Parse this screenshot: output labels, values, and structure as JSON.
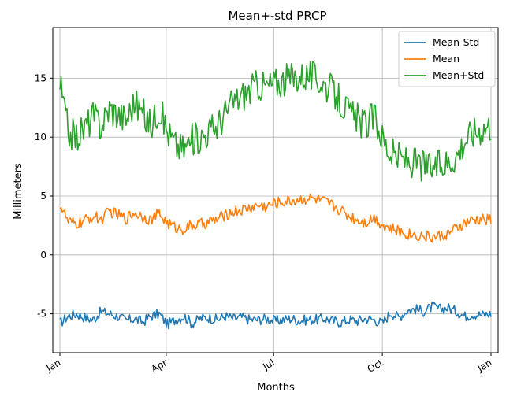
{
  "chart_data": {
    "type": "line",
    "title": "Mean+-std   PRCP",
    "xlabel": "Months",
    "ylabel": "Millimeters",
    "ylim": [
      -8.3,
      19.3
    ],
    "xlim": [
      -6,
      371
    ],
    "grid": true,
    "legend_position": "top-right",
    "x_ticks": [
      {
        "label": "Jan",
        "day": 0
      },
      {
        "label": "Apr",
        "day": 90
      },
      {
        "label": "Jul",
        "day": 181
      },
      {
        "label": "Oct",
        "day": 273
      },
      {
        "label": "Jan",
        "day": 365
      }
    ],
    "y_ticks": [
      -5,
      0,
      5,
      10,
      15
    ],
    "series": [
      {
        "name": "Mean-Std",
        "color": "#1f77b4",
        "x": [
          0,
          7,
          14,
          21,
          28,
          35,
          42,
          49,
          56,
          63,
          70,
          77,
          84,
          91,
          98,
          105,
          112,
          119,
          126,
          133,
          140,
          147,
          154,
          161,
          168,
          175,
          182,
          189,
          196,
          203,
          210,
          217,
          224,
          231,
          238,
          245,
          252,
          259,
          266,
          273,
          280,
          287,
          294,
          301,
          308,
          315,
          322,
          329,
          336,
          343,
          350,
          357,
          364
        ],
        "values": [
          -5.8,
          -5.2,
          -5.0,
          -5.3,
          -5.5,
          -4.8,
          -5.0,
          -5.2,
          -5.6,
          -5.4,
          -5.7,
          -5.2,
          -5.0,
          -5.9,
          -5.5,
          -5.2,
          -5.8,
          -5.4,
          -5.3,
          -5.5,
          -5.2,
          -5.4,
          -5.3,
          -5.5,
          -5.5,
          -5.4,
          -5.6,
          -5.5,
          -5.4,
          -5.6,
          -5.5,
          -5.5,
          -5.4,
          -5.6,
          -5.7,
          -5.5,
          -5.6,
          -5.4,
          -5.5,
          -5.8,
          -4.9,
          -5.3,
          -4.7,
          -4.6,
          -4.8,
          -4.4,
          -4.6,
          -4.5,
          -4.8,
          -5.2,
          -5.0,
          -5.1,
          -5.0
        ]
      },
      {
        "name": "Mean",
        "color": "#ff7f0e",
        "x": [
          0,
          7,
          14,
          21,
          28,
          35,
          42,
          49,
          56,
          63,
          70,
          77,
          84,
          91,
          98,
          105,
          112,
          119,
          126,
          133,
          140,
          147,
          154,
          161,
          168,
          175,
          182,
          189,
          196,
          203,
          210,
          217,
          224,
          231,
          238,
          245,
          252,
          259,
          266,
          273,
          280,
          287,
          294,
          301,
          308,
          315,
          322,
          329,
          336,
          343,
          350,
          357,
          364
        ],
        "values": [
          4.3,
          2.8,
          2.6,
          2.9,
          3.3,
          3.0,
          3.7,
          3.4,
          3.1,
          3.6,
          3.3,
          3.0,
          3.5,
          2.7,
          2.3,
          2.2,
          2.5,
          2.6,
          2.8,
          3.0,
          3.4,
          3.7,
          3.8,
          4.0,
          4.2,
          4.1,
          4.4,
          4.5,
          4.6,
          4.7,
          4.8,
          4.7,
          4.5,
          4.2,
          3.8,
          3.3,
          3.0,
          2.8,
          3.2,
          2.6,
          2.2,
          2.0,
          1.8,
          1.7,
          1.6,
          1.5,
          1.6,
          1.8,
          2.2,
          2.7,
          2.9,
          3.0,
          3.0
        ]
      },
      {
        "name": "Mean+Std",
        "color": "#2ca02c",
        "x": [
          0,
          7,
          14,
          21,
          28,
          35,
          42,
          49,
          56,
          63,
          70,
          77,
          84,
          91,
          98,
          105,
          112,
          119,
          126,
          133,
          140,
          147,
          154,
          161,
          168,
          175,
          182,
          189,
          196,
          203,
          210,
          217,
          224,
          231,
          238,
          245,
          252,
          259,
          266,
          273,
          280,
          287,
          294,
          301,
          308,
          315,
          322,
          329,
          336,
          343,
          350,
          357,
          364
        ],
        "values": [
          14.5,
          10.5,
          10.0,
          10.8,
          11.8,
          11.0,
          12.5,
          12.0,
          11.5,
          13.0,
          12.0,
          11.0,
          12.5,
          10.5,
          9.3,
          9.0,
          9.8,
          10.0,
          10.5,
          11.0,
          12.0,
          13.0,
          13.5,
          14.0,
          14.5,
          14.3,
          14.6,
          14.8,
          15.0,
          15.2,
          15.3,
          15.0,
          14.5,
          13.8,
          13.0,
          12.0,
          11.5,
          11.0,
          11.8,
          10.0,
          8.6,
          8.3,
          8.0,
          7.8,
          7.6,
          7.4,
          7.6,
          7.9,
          8.5,
          9.8,
          10.4,
          10.8,
          11.0
        ]
      }
    ]
  }
}
